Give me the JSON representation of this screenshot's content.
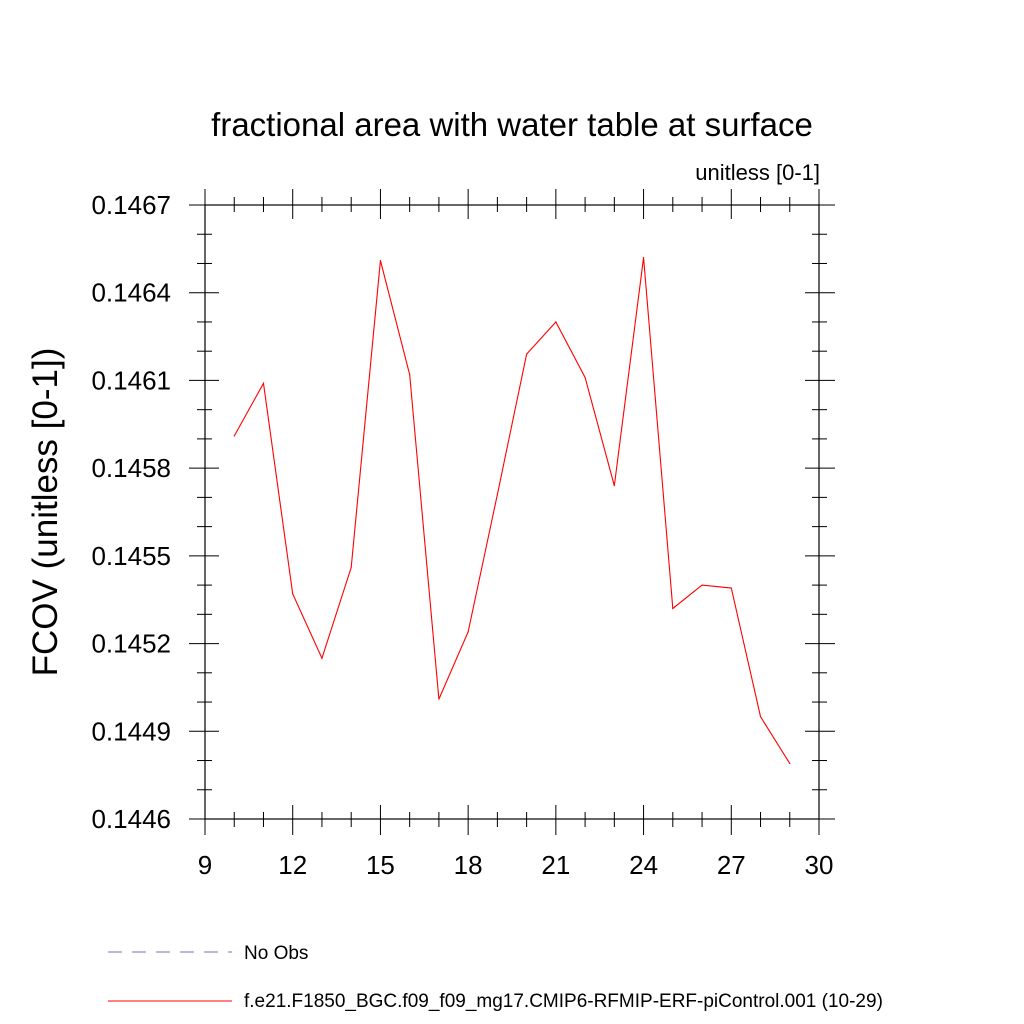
{
  "chart_data": {
    "type": "line",
    "title": "fractional area with water table at surface",
    "subtitle": "unitless [0-1]",
    "xlabel": "",
    "ylabel": "FCOV  (unitless [0-1])",
    "xlim": [
      9,
      30
    ],
    "ylim": [
      0.1446,
      0.1467
    ],
    "x_ticks": [
      "9",
      "12",
      "15",
      "18",
      "21",
      "24",
      "27",
      "30"
    ],
    "y_ticks": [
      "0.1446",
      "0.1449",
      "0.1452",
      "0.1455",
      "0.1458",
      "0.1461",
      "0.1464",
      "0.1467"
    ],
    "grid": false,
    "legend_position": "bottom",
    "series": [
      {
        "name": "f.e21.F1850_BGC.f09_f09_mg17.CMIP6-RFMIP-ERF-piControl.001 (10-29)",
        "color": "#ff0000",
        "x": [
          10,
          11,
          12,
          13,
          14,
          15,
          16,
          17,
          18,
          19,
          20,
          21,
          22,
          23,
          24,
          25,
          26,
          27,
          28,
          29
        ],
        "y": [
          0.14591,
          0.14609,
          0.14537,
          0.14515,
          0.14546,
          0.14651,
          0.14612,
          0.14501,
          0.14524,
          0.14571,
          0.14619,
          0.1463,
          0.14611,
          0.14574,
          0.14652,
          0.14532,
          0.1454,
          0.14539,
          0.14495,
          0.14479
        ]
      }
    ],
    "legend": [
      {
        "label": "No Obs",
        "color": "#7a6fb3",
        "style": "dashed"
      },
      {
        "label": "f.e21.F1850_BGC.f09_f09_mg17.CMIP6-RFMIP-ERF-piControl.001 (10-29)",
        "color": "#ff0000",
        "style": "solid"
      }
    ]
  }
}
